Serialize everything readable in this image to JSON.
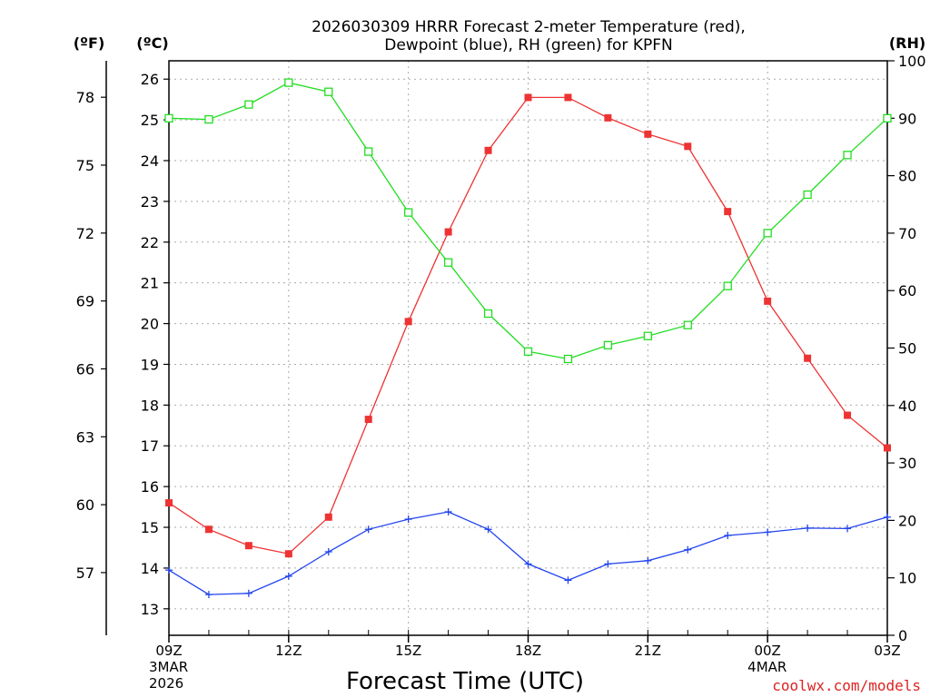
{
  "chart_data": {
    "type": "line",
    "title_line1": "2026030309 HRRR Forecast 2-meter Temperature (red),",
    "title_line2": "Dewpoint (blue), RH (green) for KPFN",
    "xlabel": "Forecast Time (UTC)",
    "credit": "coolwx.com/models",
    "left_unit_f": "(ºF)",
    "left_unit_c": "(ºC)",
    "right_unit": "(RH)",
    "x_range": [
      9,
      27
    ],
    "x_ticks": [
      {
        "x": 9,
        "label": "09Z",
        "date1": "3MAR",
        "date2": "2026"
      },
      {
        "x": 12,
        "label": "12Z",
        "date1": "",
        "date2": ""
      },
      {
        "x": 15,
        "label": "15Z",
        "date1": "",
        "date2": ""
      },
      {
        "x": 18,
        "label": "18Z",
        "date1": "",
        "date2": ""
      },
      {
        "x": 21,
        "label": "21Z",
        "date1": "",
        "date2": ""
      },
      {
        "x": 24,
        "label": "00Z",
        "date1": "4MAR",
        "date2": ""
      },
      {
        "x": 27,
        "label": "03Z",
        "date1": "",
        "date2": ""
      }
    ],
    "c_range": [
      12.35,
      26.45
    ],
    "c_ticks": [
      13,
      14,
      15,
      16,
      17,
      18,
      19,
      20,
      21,
      22,
      23,
      24,
      25,
      26
    ],
    "f_ticks": [
      57,
      60,
      63,
      66,
      69,
      72,
      75,
      78
    ],
    "rh_range": [
      0,
      100
    ],
    "rh_ticks": [
      0,
      10,
      20,
      30,
      40,
      50,
      60,
      70,
      80,
      90,
      100
    ],
    "series": [
      {
        "name": "Temperature",
        "unit": "C",
        "color": "#ee3333",
        "marker": "filled-square",
        "x": [
          9,
          10,
          11,
          12,
          13,
          14,
          15,
          16,
          17,
          18,
          19,
          20,
          21,
          22,
          23,
          24,
          25,
          26,
          27
        ],
        "values": [
          15.6,
          14.95,
          14.55,
          14.35,
          15.25,
          17.65,
          20.05,
          22.25,
          24.25,
          25.55,
          25.55,
          25.05,
          24.65,
          24.35,
          22.75,
          20.55,
          19.15,
          17.75,
          16.95
        ]
      },
      {
        "name": "Dewpoint",
        "unit": "C",
        "color": "#2244ee",
        "marker": "plus",
        "x": [
          9,
          10,
          11,
          12,
          13,
          14,
          15,
          16,
          17,
          18,
          19,
          20,
          21,
          22,
          23,
          24,
          25,
          26,
          27
        ],
        "values": [
          13.95,
          13.35,
          13.38,
          13.8,
          14.4,
          14.95,
          15.2,
          15.38,
          14.95,
          14.1,
          13.7,
          14.1,
          14.18,
          14.45,
          14.8,
          14.88,
          14.98,
          14.97,
          15.25
        ]
      },
      {
        "name": "RH",
        "unit": "%",
        "color": "#22dd22",
        "marker": "open-square",
        "x": [
          9,
          10,
          11,
          12,
          13,
          14,
          15,
          16,
          17,
          18,
          19,
          20,
          21,
          22,
          23,
          24,
          25,
          26,
          27
        ],
        "values": [
          90,
          89.8,
          92.4,
          96.2,
          94.6,
          84.2,
          73.6,
          64.9,
          56,
          49.4,
          48.1,
          50.5,
          52.1,
          54,
          60.8,
          70,
          76.7,
          83.6,
          90
        ]
      }
    ]
  }
}
